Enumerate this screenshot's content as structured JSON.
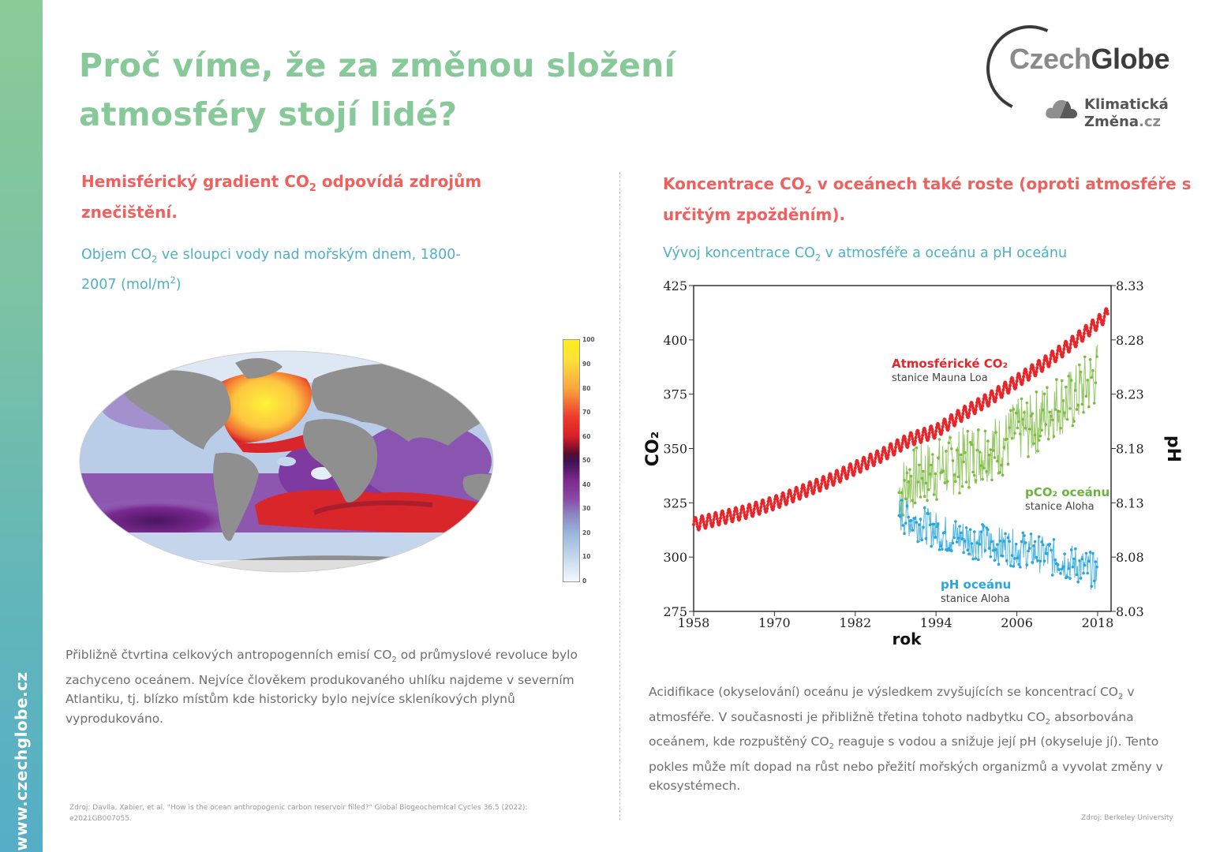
{
  "sidebar": {
    "url": "www.czechglobe.cz",
    "gradient_top": "#8bcb97",
    "gradient_bottom": "#55aec7"
  },
  "title": {
    "line1": "Proč víme, že za změnou složení",
    "line2": "atmosféry stojí lidé?",
    "color": "#88c99a"
  },
  "logo": {
    "czech": "Czech",
    "globe": "Globe",
    "km_line1": "Klimatická",
    "km_line2": "Změna",
    "km_tld": ".cz"
  },
  "left": {
    "heading_pre": "Hemisférický gradient CO",
    "heading_sub": "2",
    "heading_post": " odpovídá zdrojům znečištění.",
    "subtitle_pre": "Objem CO",
    "subtitle_sub": "2",
    "subtitle_mid": " ve sloupci vody nad mořským dnem, 1800-2007 (mol/m",
    "subtitle_sup": "2",
    "subtitle_post": ")",
    "map_alt": "Mapa světa – antropogenní CO2 v oceánech",
    "colorbar_ticks": [
      "100",
      "90",
      "80",
      "70",
      "60",
      "50",
      "40",
      "30",
      "20",
      "10",
      "0"
    ],
    "body_pre": "Přibližně čtvrtina celkových antropogenních emisí CO",
    "body_sub": "2",
    "body_post": " od průmyslové revoluce bylo zachyceno oceánem. Nejvíce člověkem produkovaného uhlíku najdeme v severním Atlantiku, tj. blízko místům kde historicky bylo nejvíce skleníkových plynů vyprodukováno.",
    "source": "Zdroj: Davila, Xabier, et al. \"How is the ocean anthropogenic carbon reservoir filled?\" Global Biogeochemical Cycles 36.5 (2022): e2021GB007055."
  },
  "right": {
    "heading_pre": "Koncentrace CO",
    "heading_sub": "2",
    "heading_post": " v oceánech také roste (oproti atmosféře s určitým zpožděním).",
    "subtitle_pre": "Vývoj koncentrace CO",
    "subtitle_sub": "2",
    "subtitle_post": " v atmosféře a oceánu a pH oceánu",
    "body_p1_pre": "Acidifikace (okyselování) oceánu je výsledkem zvyšujících se koncentrací CO",
    "body_p1_sub": "2",
    "body_p2_pre": " v atmosféře. V současnosti je přibližně třetina tohoto nadbytku CO",
    "body_p2_sub": "2",
    "body_p3_pre": " absorbována oceánem, kde rozpuštěný CO",
    "body_p3_sub": "2",
    "body_p4": " reaguje s vodou a snižuje její pH (okyseluje jí). Tento pokles může mít dopad na růst nebo přežití mořských organizmů a vyvolat změny v ekosystémech.",
    "source": "Zdroj: Berkeley University"
  },
  "chart_data": {
    "type": "line",
    "title": "Vývoj koncentrace CO2 v atmosféře a oceánu a pH oceánu",
    "xlabel": "rok",
    "ylabel": "CO2",
    "ylabel_right": "pH",
    "xlim": [
      1958,
      2020
    ],
    "ylim": [
      275,
      425
    ],
    "ylim_right": [
      8.03,
      8.33
    ],
    "x_ticks": [
      "1958",
      "1970",
      "1982",
      "1994",
      "2006",
      "2018"
    ],
    "y_ticks": [
      "425",
      "400",
      "375",
      "350",
      "325",
      "300",
      "275"
    ],
    "y_ticks_right": [
      "8.33",
      "8.28",
      "8.23",
      "8.18",
      "8.13",
      "8.08",
      "8.03"
    ],
    "grid": false,
    "series": [
      {
        "name": "Atmosférické CO2",
        "station": "stanice Mauna Loa",
        "color": "#e8262a",
        "axis": "left",
        "x": [
          1958,
          1962,
          1966,
          1970,
          1974,
          1978,
          1982,
          1986,
          1990,
          1994,
          1998,
          2002,
          2006,
          2010,
          2014,
          2018,
          2019.5
        ],
        "values": [
          315,
          318,
          321,
          325,
          330,
          335,
          341,
          347,
          354,
          358,
          366,
          373,
          381,
          389,
          398,
          408,
          412
        ]
      },
      {
        "name": "pCO2 oceánu",
        "station": "stanice Aloha",
        "color": "#7dbb42",
        "axis": "left",
        "x": [
          1988.5,
          1990,
          1992,
          1994,
          1996,
          1998,
          2000,
          2002,
          2004,
          2006,
          2008,
          2010,
          2012,
          2014,
          2016,
          2018
        ],
        "values": [
          330,
          335,
          338,
          340,
          342,
          345,
          348,
          350,
          352,
          358,
          360,
          365,
          370,
          372,
          378,
          385
        ]
      },
      {
        "name": "pH oceánu",
        "station": "stanice Aloha",
        "color": "#2aa6dc",
        "axis": "right",
        "x": [
          1988.5,
          1990,
          1992,
          1994,
          1996,
          1998,
          2000,
          2002,
          2004,
          2006,
          2008,
          2010,
          2012,
          2014,
          2016,
          2018
        ],
        "values": [
          8.12,
          8.115,
          8.11,
          8.105,
          8.1,
          8.098,
          8.095,
          8.092,
          8.09,
          8.088,
          8.085,
          8.082,
          8.078,
          8.075,
          8.07,
          8.065
        ]
      }
    ],
    "annotations": [
      {
        "text": "Atmosférické CO2",
        "sub": "stanice Mauna Loa",
        "color": "#e8262a"
      },
      {
        "text": "pCO2 oceánu",
        "sub": "stanice Aloha",
        "color": "#6cb33f"
      },
      {
        "text": "pH oceánu",
        "sub": "stanice Aloha",
        "color": "#2aa6dc"
      }
    ]
  }
}
